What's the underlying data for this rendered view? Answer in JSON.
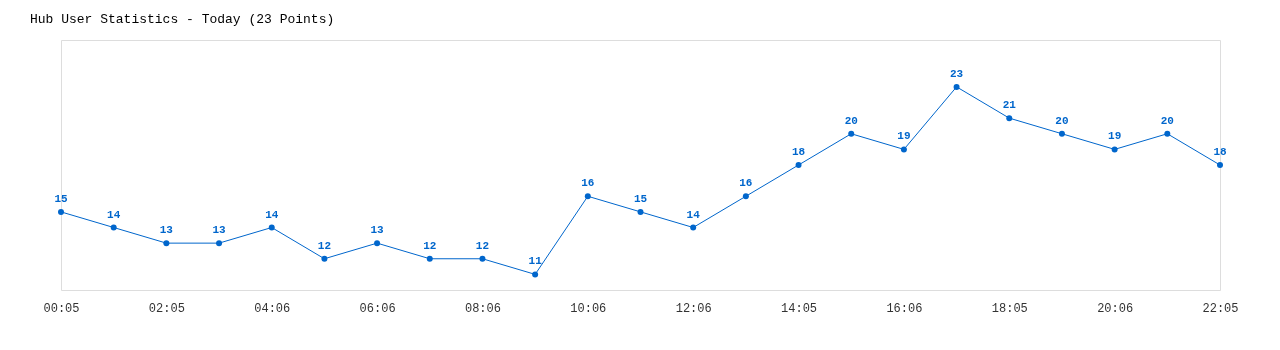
{
  "chart_data": {
    "type": "line",
    "title": "Hub User Statistics - Today (23 Points)",
    "categories": [
      "00:05",
      null,
      "02:05",
      null,
      "04:06",
      null,
      "06:06",
      null,
      "08:06",
      null,
      "10:06",
      null,
      "12:06",
      null,
      "14:05",
      null,
      "16:06",
      null,
      "18:05",
      null,
      "20:06",
      null,
      "22:05"
    ],
    "series": [
      {
        "color": "#0066cc",
        "values": [
          15,
          14,
          13,
          13,
          14,
          12,
          13,
          12,
          12,
          11,
          16,
          15,
          14,
          16,
          18,
          20,
          19,
          23,
          21,
          20,
          19,
          20,
          18
        ]
      }
    ],
    "ylim": [
      10,
      26
    ],
    "tick_labels": "x",
    "grid": false,
    "marker": "circle",
    "line_style": "solid",
    "data_labels": true
  }
}
